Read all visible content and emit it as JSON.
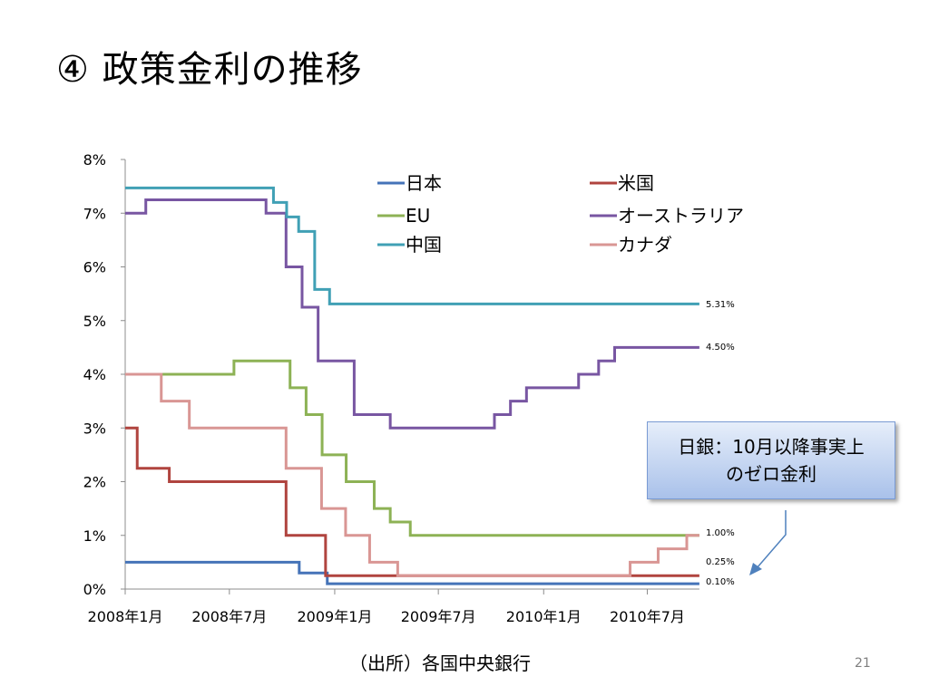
{
  "slide": {
    "title": "④ 政策金利の推移",
    "source": "（出所）各国中央銀行",
    "page_number": "21",
    "callout": "日銀：10月以降事実上\nのゼロ金利"
  },
  "chart_data": {
    "type": "line",
    "step": true,
    "title": "",
    "xlabel": "",
    "ylabel": "",
    "x_ticks": [
      "2008年1月",
      "2008年7月",
      "2009年1月",
      "2009年7月",
      "2010年1月",
      "2010年7月"
    ],
    "x_range": [
      "2008-01-01",
      "2010-09-30"
    ],
    "y_ticks": [
      "0%",
      "1%",
      "2%",
      "3%",
      "4%",
      "5%",
      "6%",
      "7%",
      "8%"
    ],
    "ylim": [
      0,
      8
    ],
    "grid": false,
    "legend_position": "top",
    "series": [
      {
        "name": "日本",
        "color": "#4573b8",
        "points": [
          [
            "2008-01-01",
            0.5
          ],
          [
            "2008-10-31",
            0.3
          ],
          [
            "2008-12-19",
            0.1
          ],
          [
            "2010-09-30",
            0.1
          ]
        ]
      },
      {
        "name": "米国",
        "color": "#b0443f",
        "points": [
          [
            "2008-01-01",
            3.0
          ],
          [
            "2008-01-22",
            2.25
          ],
          [
            "2008-03-18",
            2.0
          ],
          [
            "2008-10-08",
            1.0
          ],
          [
            "2008-12-16",
            0.25
          ],
          [
            "2010-09-30",
            0.25
          ]
        ]
      },
      {
        "name": "EU",
        "color": "#8db255",
        "points": [
          [
            "2008-01-01",
            4.0
          ],
          [
            "2008-07-09",
            4.25
          ],
          [
            "2008-10-15",
            3.75
          ],
          [
            "2008-11-12",
            3.25
          ],
          [
            "2008-12-10",
            2.5
          ],
          [
            "2009-01-21",
            2.0
          ],
          [
            "2009-03-11",
            1.5
          ],
          [
            "2009-04-08",
            1.25
          ],
          [
            "2009-05-13",
            1.0
          ],
          [
            "2010-09-30",
            1.0
          ]
        ]
      },
      {
        "name": "オーストラリア",
        "color": "#7856a2",
        "points": [
          [
            "2008-01-01",
            7.0
          ],
          [
            "2008-02-06",
            7.25
          ],
          [
            "2008-03-05",
            7.25
          ],
          [
            "2008-09-03",
            7.0
          ],
          [
            "2008-10-08",
            6.0
          ],
          [
            "2008-11-05",
            5.25
          ],
          [
            "2008-12-03",
            4.25
          ],
          [
            "2009-02-04",
            3.25
          ],
          [
            "2009-04-08",
            3.0
          ],
          [
            "2009-10-07",
            3.25
          ],
          [
            "2009-11-04",
            3.5
          ],
          [
            "2009-12-02",
            3.75
          ],
          [
            "2010-03-03",
            4.0
          ],
          [
            "2010-04-07",
            4.25
          ],
          [
            "2010-05-05",
            4.5
          ],
          [
            "2010-09-30",
            4.5
          ]
        ]
      },
      {
        "name": "中国",
        "color": "#40a0b5",
        "points": [
          [
            "2008-01-01",
            7.47
          ],
          [
            "2008-09-16",
            7.2
          ],
          [
            "2008-10-09",
            6.93
          ],
          [
            "2008-10-30",
            6.66
          ],
          [
            "2008-11-27",
            5.58
          ],
          [
            "2008-12-23",
            5.31
          ],
          [
            "2010-09-30",
            5.31
          ]
        ]
      },
      {
        "name": "カナダ",
        "color": "#d99694",
        "points": [
          [
            "2008-01-01",
            4.0
          ],
          [
            "2008-01-22",
            4.0
          ],
          [
            "2008-03-04",
            3.5
          ],
          [
            "2008-04-22",
            3.0
          ],
          [
            "2008-10-08",
            2.25
          ],
          [
            "2008-12-09",
            1.5
          ],
          [
            "2009-01-20",
            1.0
          ],
          [
            "2009-03-03",
            0.5
          ],
          [
            "2009-04-21",
            0.25
          ],
          [
            "2010-06-01",
            0.5
          ],
          [
            "2010-07-20",
            0.75
          ],
          [
            "2010-09-08",
            1.0
          ],
          [
            "2010-09-30",
            1.0
          ]
        ]
      }
    ],
    "end_labels": [
      "5.31%",
      "4.50%",
      "1.00%",
      "0.25%",
      "0.10%"
    ]
  }
}
